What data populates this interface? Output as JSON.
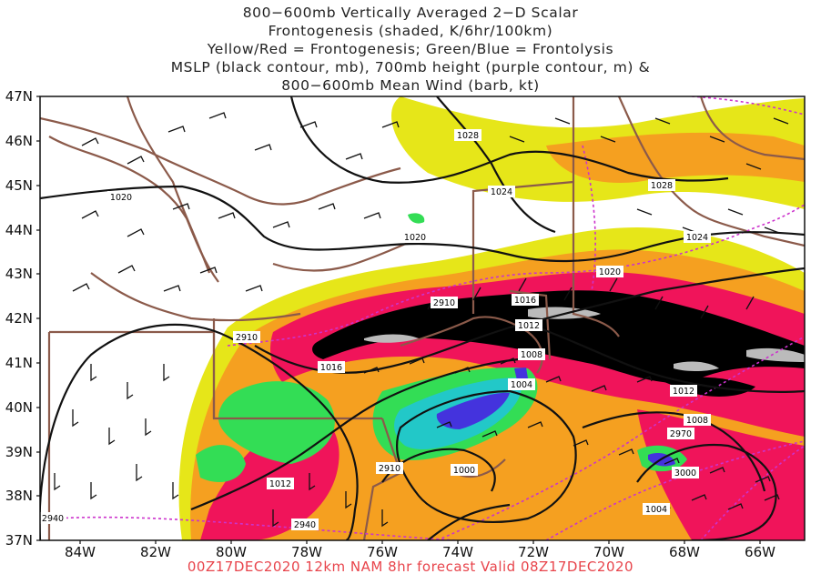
{
  "title": {
    "lines": [
      "800−600mb Vertically Averaged 2−D Scalar",
      "Frontogenesis (shaded, K/6hr/100km)",
      "Yellow/Red = Frontogenesis;  Green/Blue = Frontolysis",
      "MSLP (black contour, mb), 700mb height (purple contour, m) &",
      "800−600mb Mean Wind (barb, kt)"
    ]
  },
  "footer": "00Z17DEC2020 12km NAM 8hr forecast Valid 08Z17DEC2020",
  "axes": {
    "lat_labels": [
      "47N",
      "46N",
      "45N",
      "44N",
      "43N",
      "42N",
      "41N",
      "40N",
      "39N",
      "38N",
      "37N"
    ],
    "lon_labels": [
      "84W",
      "82W",
      "80W",
      "78W",
      "76W",
      "74W",
      "72W",
      "70W",
      "68W",
      "66W"
    ]
  },
  "contour_labels": {
    "mslp": [
      "1028",
      "1024",
      "1028",
      "1020",
      "1024",
      "1020",
      "1020",
      "1016",
      "1012",
      "1016",
      "1008",
      "1004",
      "1012",
      "1012",
      "1008",
      "1000",
      "1012",
      "1004"
    ],
    "height_700mb": [
      "2910",
      "2910",
      "2910",
      "2970",
      "3000",
      "2940",
      "2940"
    ]
  },
  "colors": {
    "mslp": "#111111",
    "height_700mb": "#cc33cc",
    "borders": "#8b5a4a",
    "frontogenesis_weak": "#e6e619",
    "frontogenesis_mid": "#f5a020",
    "frontogenesis_strong": "#f0145a",
    "frontogenesis_max": "#000000",
    "frontolysis_weak": "#33dd55",
    "frontolysis_mid": "#22c8c8",
    "frontolysis_strong": "#4433dd",
    "footer": "#e8444b"
  }
}
